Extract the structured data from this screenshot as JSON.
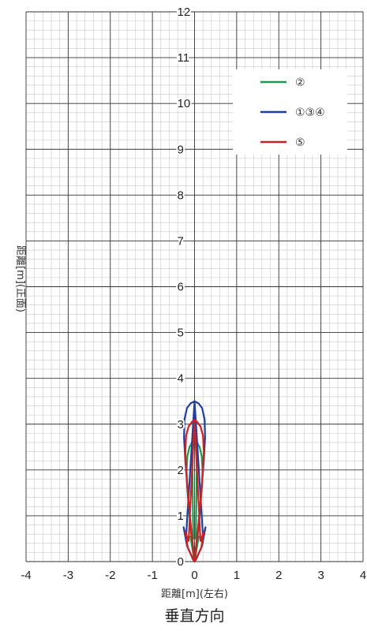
{
  "chart_data": {
    "type": "line",
    "title": "",
    "caption": "垂直方向",
    "xlabel": "距離[m](左右)",
    "ylabel": "距離[m](正面)",
    "xlim": [
      -4,
      4
    ],
    "ylim": [
      0,
      12
    ],
    "x_ticks": [
      "-4",
      "-3",
      "-2",
      "-1",
      "0",
      "1",
      "2",
      "3",
      "4"
    ],
    "y_ticks": [
      "0",
      "1",
      "2",
      "3",
      "4",
      "5",
      "6",
      "7",
      "8",
      "9",
      "10",
      "11",
      "12"
    ],
    "grid": true,
    "legend_position": "top-right",
    "colors": {
      "grid_major": "#333333",
      "grid_minor": "#c8c8c8"
    },
    "series": [
      {
        "name": "②",
        "color": "#1a9a4a",
        "x": [
          0,
          0.02,
          0.08,
          0.14,
          0.18,
          0.19,
          0.17,
          0.12,
          0.06,
          0.03,
          0.1,
          0.08,
          0.01,
          0,
          -0.01,
          -0.08,
          -0.1,
          -0.03,
          -0.06,
          -0.12,
          -0.17,
          -0.19,
          -0.18,
          -0.14,
          -0.08,
          -0.02,
          0
        ],
        "y": [
          0,
          0.2,
          0.6,
          1.2,
          1.7,
          2.0,
          2.3,
          2.5,
          2.6,
          0.5,
          0.55,
          0.45,
          0.05,
          0,
          0.05,
          0.45,
          0.55,
          0.5,
          2.6,
          2.5,
          2.3,
          2.0,
          1.7,
          1.2,
          0.6,
          0.2,
          0
        ]
      },
      {
        "name": "①③④",
        "color": "#1e3f9e",
        "x": [
          0,
          0.02,
          0.08,
          0.16,
          0.22,
          0.25,
          0.24,
          0.18,
          0.1,
          0,
          0.2,
          0.26,
          0.18,
          0.04,
          0,
          -0.04,
          -0.18,
          -0.26,
          -0.2,
          0,
          -0.1,
          -0.18,
          -0.24,
          -0.25,
          -0.22,
          -0.16,
          -0.08,
          -0.02,
          0
        ],
        "y": [
          0,
          0.2,
          0.7,
          1.5,
          2.2,
          2.7,
          3.1,
          3.35,
          3.45,
          3.5,
          0.55,
          0.75,
          0.35,
          0.05,
          0,
          0.05,
          0.35,
          0.75,
          0.55,
          3.5,
          3.45,
          3.35,
          3.1,
          2.7,
          2.2,
          1.5,
          0.7,
          0.2,
          0
        ]
      },
      {
        "name": "⑤",
        "color": "#cc2222",
        "x": [
          0,
          0.02,
          0.08,
          0.15,
          0.2,
          0.22,
          0.2,
          0.14,
          0.06,
          0,
          0.14,
          0.22,
          0.16,
          0.03,
          0,
          -0.03,
          -0.16,
          -0.22,
          -0.14,
          0,
          -0.06,
          -0.14,
          -0.2,
          -0.22,
          -0.2,
          -0.15,
          -0.08,
          -0.02,
          0
        ],
        "y": [
          0,
          0.2,
          0.7,
          1.4,
          2.0,
          2.4,
          2.75,
          2.95,
          3.05,
          3.1,
          0.45,
          0.65,
          0.3,
          0.05,
          0,
          0.05,
          0.3,
          0.65,
          0.45,
          3.1,
          3.05,
          2.95,
          2.75,
          2.4,
          2.0,
          1.4,
          0.7,
          0.2,
          0
        ]
      }
    ]
  }
}
